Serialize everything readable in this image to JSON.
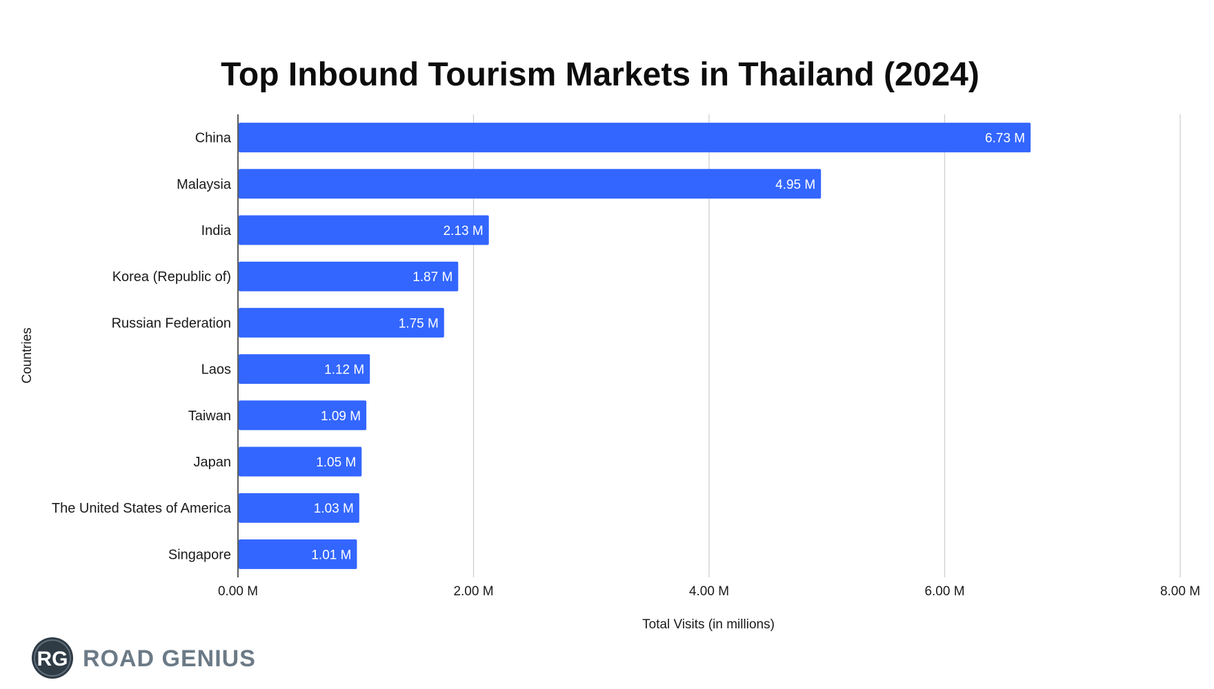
{
  "chart_data": {
    "type": "bar",
    "orientation": "horizontal",
    "title": "Top Inbound Tourism Markets in Thailand (2024)",
    "xlabel": "Total Visits (in millions)",
    "ylabel": "Countries",
    "categories": [
      "China",
      "Malaysia",
      "India",
      "Korea (Republic of)",
      "Russian Federation",
      "Laos",
      "Taiwan",
      "Japan",
      "The United States of America",
      "Singapore"
    ],
    "values": [
      6.73,
      4.95,
      2.13,
      1.87,
      1.75,
      1.12,
      1.09,
      1.05,
      1.03,
      1.01
    ],
    "value_labels": [
      "6.73 M",
      "4.95 M",
      "2.13 M",
      "1.87 M",
      "1.75 M",
      "1.12 M",
      "1.09 M",
      "1.05 M",
      "1.03 M",
      "1.01 M"
    ],
    "xlim": [
      0,
      8
    ],
    "x_ticks": [
      0,
      2,
      4,
      6,
      8
    ],
    "x_tick_labels": [
      "0.00 M",
      "2.00 M",
      "4.00 M",
      "6.00 M",
      "8.00 M"
    ],
    "grid": true,
    "legend": "none",
    "bar_color": "#3366ff"
  },
  "logo": {
    "mark": "RG",
    "text": "ROAD GENIUS",
    "mark_color": "#2f3b45",
    "text_color": "#6b7a86"
  }
}
